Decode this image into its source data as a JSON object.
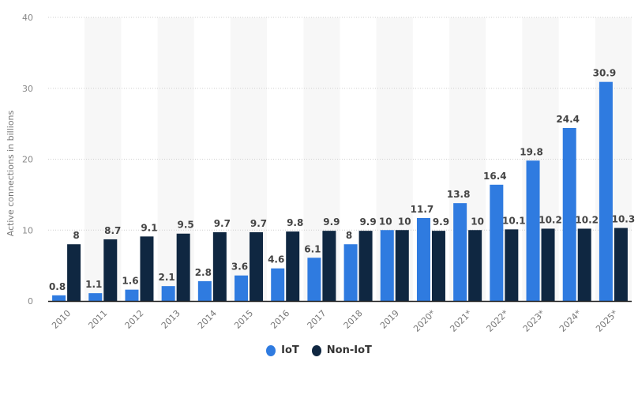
{
  "chart_data": {
    "type": "bar",
    "ylabel": "Active connections in billions",
    "ylim": [
      0,
      40
    ],
    "yticks": [
      0,
      10,
      20,
      30,
      40
    ],
    "grid": true,
    "legend_placement": "bottom",
    "categories": [
      "2010",
      "2011",
      "2012",
      "2013",
      "2014",
      "2015",
      "2016",
      "2017",
      "2018",
      "2019",
      "2020*",
      "2021*",
      "2022*",
      "2023*",
      "2024*",
      "2025*"
    ],
    "series": [
      {
        "name": "IoT",
        "color": "#2f7be0",
        "values": [
          0.8,
          1.1,
          1.6,
          2.1,
          2.8,
          3.6,
          4.6,
          6.1,
          8,
          10,
          11.7,
          13.8,
          16.4,
          19.8,
          24.4,
          30.9
        ]
      },
      {
        "name": "Non-IoT",
        "color": "#0f2741",
        "values": [
          8,
          8.7,
          9.1,
          9.5,
          9.7,
          9.7,
          9.8,
          9.9,
          9.9,
          10,
          9.9,
          10,
          10.1,
          10.2,
          10.2,
          10.3
        ]
      }
    ]
  }
}
